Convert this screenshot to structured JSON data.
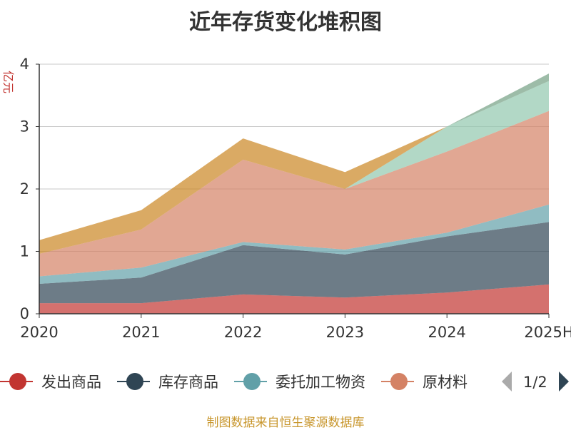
{
  "chart_data": {
    "type": "area",
    "title": "近年存货变化堆积图",
    "ylabel": "亿元",
    "categories": [
      "2020",
      "2021",
      "2022",
      "2023",
      "2024",
      "2025H"
    ],
    "ylim": [
      0,
      4
    ],
    "yticks": [
      0,
      1,
      2,
      3,
      4
    ],
    "grid": true,
    "stacked": true,
    "legend_position": "bottom",
    "legend_page": "1/2",
    "series": [
      {
        "name": "发出商品",
        "color": "#c23531",
        "values": [
          0.17,
          0.17,
          0.31,
          0.26,
          0.34,
          0.47
        ]
      },
      {
        "name": "库存商品",
        "color": "#2f4554",
        "values": [
          0.31,
          0.41,
          0.79,
          0.69,
          0.9,
          1.0
        ]
      },
      {
        "name": "委托加工物资",
        "color": "#61a0a8",
        "values": [
          0.12,
          0.16,
          0.05,
          0.08,
          0.06,
          0.28
        ]
      },
      {
        "name": "原材料",
        "color": "#d48265",
        "values": [
          0.36,
          0.61,
          1.32,
          0.97,
          1.3,
          1.5
        ]
      },
      {
        "name": "",
        "color": "#91c7ae",
        "values": [
          0.0,
          0.0,
          0.0,
          0.0,
          0.4,
          0.48
        ]
      },
      {
        "name": "",
        "color": "#749f83",
        "values": [
          0.0,
          0.0,
          0.0,
          0.0,
          0.0,
          0.12
        ]
      },
      {
        "name": "",
        "color": "#ca8622",
        "values": [
          0.22,
          0.31,
          0.34,
          0.27,
          0.0,
          0.0
        ]
      }
    ]
  },
  "source_note": "制图数据来自恒生聚源数据库"
}
